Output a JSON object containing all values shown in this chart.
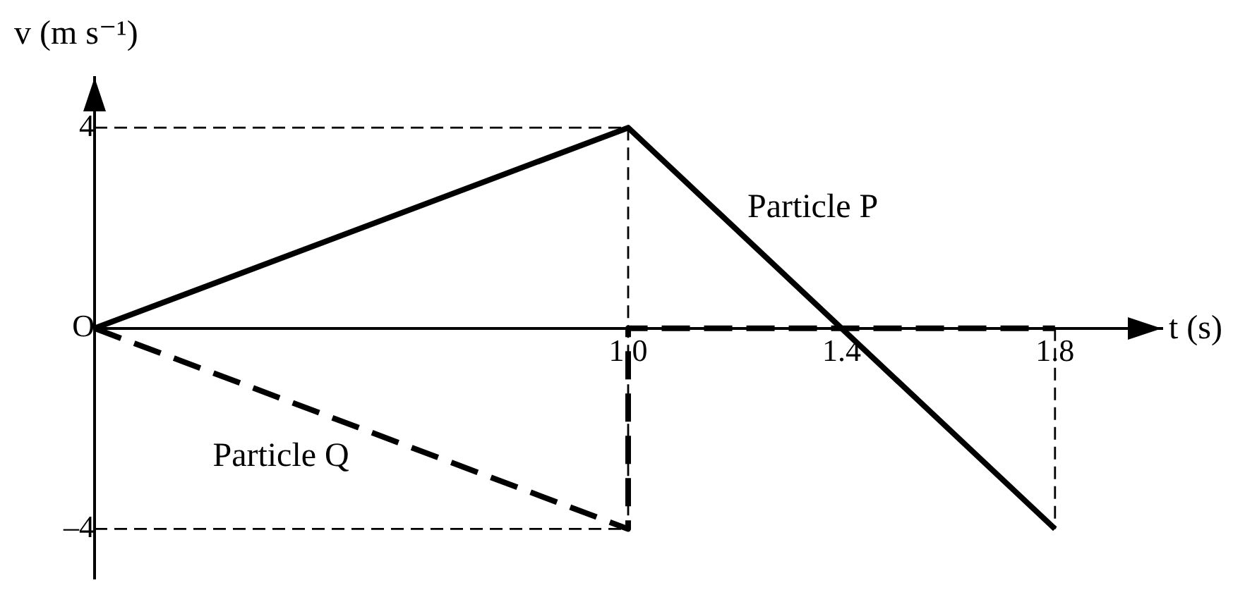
{
  "chart_data": {
    "type": "line",
    "xlabel": "t (s)",
    "ylabel": "v (m s⁻¹)",
    "xlim": [
      0,
      2
    ],
    "ylim": [
      -5,
      5
    ],
    "xticks": [
      {
        "value": 1,
        "label": "1.0"
      },
      {
        "value": 1.4,
        "label": "1.4"
      },
      {
        "value": 1.8,
        "label": "1.8"
      }
    ],
    "yticks": [
      {
        "value": -4,
        "label": "–4"
      },
      {
        "value": 0,
        "label": "O"
      },
      {
        "value": 4,
        "label": "4"
      }
    ],
    "grid": false,
    "legend": false,
    "marker": "none",
    "series": [
      {
        "name": "Particle P",
        "color": "#000000",
        "x": [
          0,
          1,
          1.8
        ],
        "values": [
          0,
          4,
          -4
        ],
        "line_style": "solid"
      },
      {
        "name": "Particle Q",
        "color": "#000000",
        "x": [
          0,
          1,
          1,
          1.8
        ],
        "values": [
          0,
          -4,
          0,
          0
        ],
        "line_style": "dashed"
      },
      {
        "color": "#000000",
        "x": [
          0,
          1
        ],
        "values": [
          4,
          4
        ],
        "line_style": "dashed"
      },
      {
        "color": "#000000",
        "x": [
          1,
          1
        ],
        "values": [
          4,
          -4
        ],
        "line_style": "dashed"
      },
      {
        "color": "#000000",
        "x": [
          0,
          1
        ],
        "values": [
          -4,
          -4
        ],
        "line_style": "dashed"
      },
      {
        "color": "#000000",
        "x": [
          1.8,
          1.8
        ],
        "values": [
          0,
          -4
        ],
        "line_style": "dashed"
      }
    ]
  }
}
